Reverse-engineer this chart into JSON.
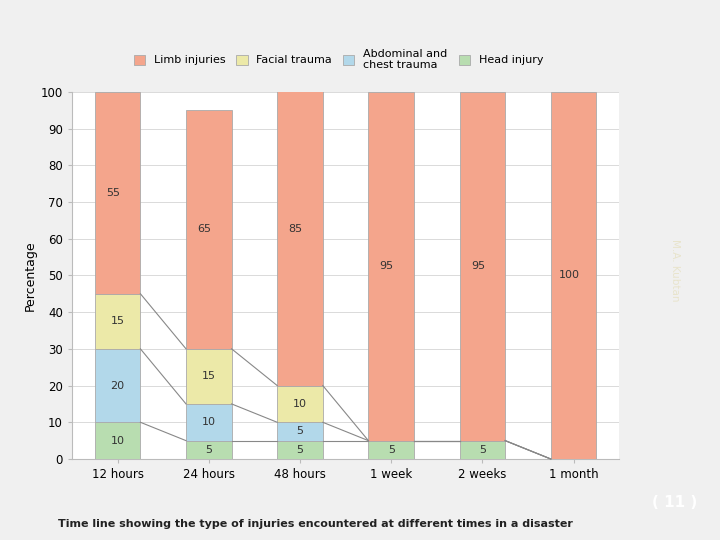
{
  "categories": [
    "12 hours",
    "24 hours",
    "48 hours",
    "1 week",
    "2 weeks",
    "1 month"
  ],
  "head_injury": [
    10,
    5,
    5,
    5,
    5,
    0
  ],
  "abdominal_chest": [
    20,
    10,
    5,
    0,
    0,
    0
  ],
  "facial_trauma": [
    15,
    15,
    10,
    0,
    0,
    0
  ],
  "limb_injuries": [
    55,
    65,
    85,
    95,
    95,
    100
  ],
  "colors": {
    "limb": "#f4a58c",
    "facial": "#ece9a8",
    "abdominal": "#b2d8ea",
    "head": "#b8ddb0"
  },
  "ylabel": "Percentage",
  "ylim": [
    0,
    100
  ],
  "yticks": [
    0,
    10,
    20,
    30,
    40,
    50,
    60,
    70,
    80,
    90,
    100
  ],
  "legend_labels": [
    "Limb injuries",
    "Facial trauma",
    "Abdominal and\nchest trauma",
    "Head injury"
  ],
  "subtitle": "Time line showing the type of injuries encountered at different times in a disaster",
  "slide_bg": "#f0f0f0",
  "chart_bg": "#ffffff",
  "sidebar_color": "#6b6646",
  "sidebar_bottom": "#9b9470",
  "sidebar_text": "#e8e4cc",
  "sidebar_num": "11"
}
